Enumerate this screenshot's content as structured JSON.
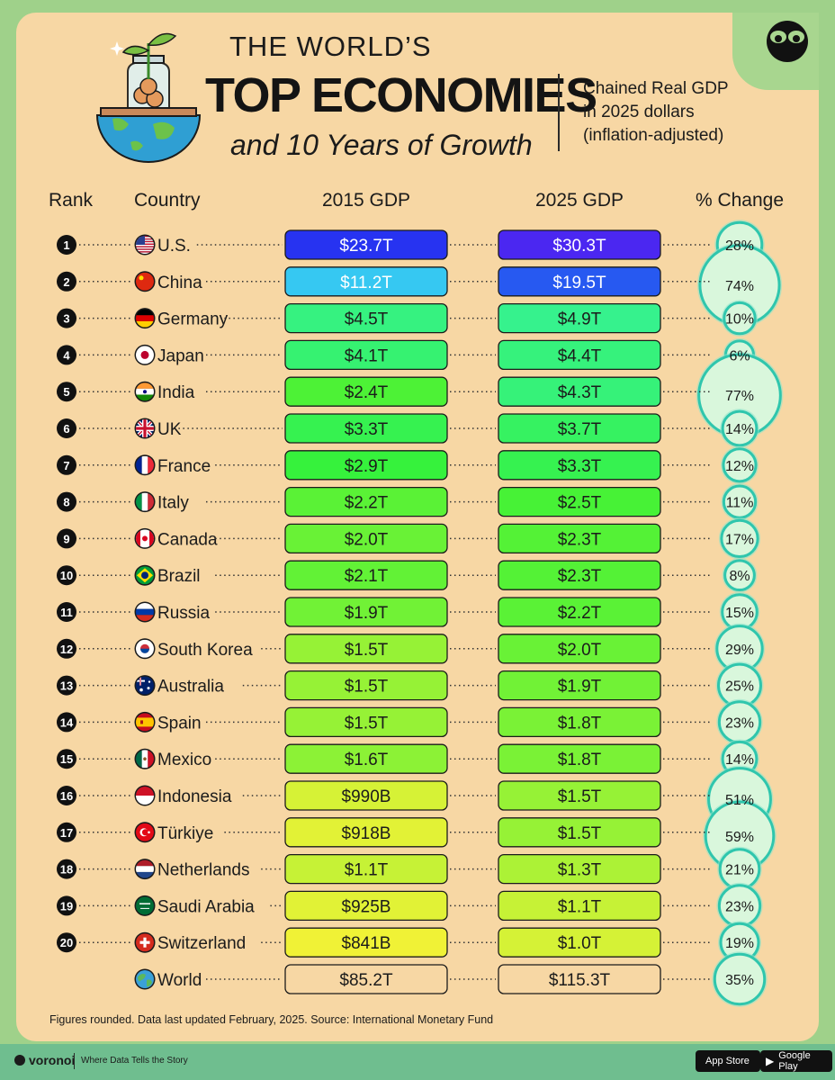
{
  "title": {
    "line1": "THE WORLD’S",
    "line2": "TOP ECONOMIES",
    "line3": "and 10 Years of Growth"
  },
  "subtitle": "Chained Real GDP\nin 2025 dollars\n(inflation-adjusted)",
  "chart_data": {
    "type": "table",
    "title": "The World's Top Economies and 10 Years of Growth",
    "columns": [
      "Rank",
      "Country",
      "2015 GDP",
      "2025 GDP",
      "% Change"
    ],
    "rows": [
      {
        "rank": "1",
        "country": "U.S.",
        "gdp2015": "$23.7T",
        "gdp2025": "$30.3T",
        "change": "28%",
        "v2015": 23.7,
        "v2025": 30.3,
        "pct": 28
      },
      {
        "rank": "2",
        "country": "China",
        "gdp2015": "$11.2T",
        "gdp2025": "$19.5T",
        "change": "74%",
        "v2015": 11.2,
        "v2025": 19.5,
        "pct": 74
      },
      {
        "rank": "3",
        "country": "Germany",
        "gdp2015": "$4.5T",
        "gdp2025": "$4.9T",
        "change": "10%",
        "v2015": 4.5,
        "v2025": 4.9,
        "pct": 10
      },
      {
        "rank": "4",
        "country": "Japan",
        "gdp2015": "$4.1T",
        "gdp2025": "$4.4T",
        "change": "6%",
        "v2015": 4.1,
        "v2025": 4.4,
        "pct": 6
      },
      {
        "rank": "5",
        "country": "India",
        "gdp2015": "$2.4T",
        "gdp2025": "$4.3T",
        "change": "77%",
        "v2015": 2.4,
        "v2025": 4.3,
        "pct": 77
      },
      {
        "rank": "6",
        "country": "UK",
        "gdp2015": "$3.3T",
        "gdp2025": "$3.7T",
        "change": "14%",
        "v2015": 3.3,
        "v2025": 3.7,
        "pct": 14
      },
      {
        "rank": "7",
        "country": "France",
        "gdp2015": "$2.9T",
        "gdp2025": "$3.3T",
        "change": "12%",
        "v2015": 2.9,
        "v2025": 3.3,
        "pct": 12
      },
      {
        "rank": "8",
        "country": "Italy",
        "gdp2015": "$2.2T",
        "gdp2025": "$2.5T",
        "change": "11%",
        "v2015": 2.2,
        "v2025": 2.5,
        "pct": 11
      },
      {
        "rank": "9",
        "country": "Canada",
        "gdp2015": "$2.0T",
        "gdp2025": "$2.3T",
        "change": "17%",
        "v2015": 2.0,
        "v2025": 2.3,
        "pct": 17
      },
      {
        "rank": "10",
        "country": "Brazil",
        "gdp2015": "$2.1T",
        "gdp2025": "$2.3T",
        "change": "8%",
        "v2015": 2.1,
        "v2025": 2.3,
        "pct": 8
      },
      {
        "rank": "11",
        "country": "Russia",
        "gdp2015": "$1.9T",
        "gdp2025": "$2.2T",
        "change": "15%",
        "v2015": 1.9,
        "v2025": 2.2,
        "pct": 15
      },
      {
        "rank": "12",
        "country": "South Korea",
        "gdp2015": "$1.5T",
        "gdp2025": "$2.0T",
        "change": "29%",
        "v2015": 1.5,
        "v2025": 2.0,
        "pct": 29
      },
      {
        "rank": "13",
        "country": "Australia",
        "gdp2015": "$1.5T",
        "gdp2025": "$1.9T",
        "change": "25%",
        "v2015": 1.5,
        "v2025": 1.9,
        "pct": 25
      },
      {
        "rank": "14",
        "country": "Spain",
        "gdp2015": "$1.5T",
        "gdp2025": "$1.8T",
        "change": "23%",
        "v2015": 1.5,
        "v2025": 1.8,
        "pct": 23
      },
      {
        "rank": "15",
        "country": "Mexico",
        "gdp2015": "$1.6T",
        "gdp2025": "$1.8T",
        "change": "14%",
        "v2015": 1.6,
        "v2025": 1.8,
        "pct": 14
      },
      {
        "rank": "16",
        "country": "Indonesia",
        "gdp2015": "$990B",
        "gdp2025": "$1.5T",
        "change": "51%",
        "v2015": 0.99,
        "v2025": 1.5,
        "pct": 51
      },
      {
        "rank": "17",
        "country": "Türkiye",
        "gdp2015": "$918B",
        "gdp2025": "$1.5T",
        "change": "59%",
        "v2015": 0.918,
        "v2025": 1.5,
        "pct": 59
      },
      {
        "rank": "18",
        "country": "Netherlands",
        "gdp2015": "$1.1T",
        "gdp2025": "$1.3T",
        "change": "21%",
        "v2015": 1.1,
        "v2025": 1.3,
        "pct": 21
      },
      {
        "rank": "19",
        "country": "Saudi Arabia",
        "gdp2015": "$925B",
        "gdp2025": "$1.1T",
        "change": "23%",
        "v2015": 0.925,
        "v2025": 1.1,
        "pct": 23
      },
      {
        "rank": "20",
        "country": "Switzerland",
        "gdp2015": "$841B",
        "gdp2025": "$1.0T",
        "change": "19%",
        "v2015": 0.841,
        "v2025": 1.0,
        "pct": 19
      },
      {
        "rank": "",
        "country": "World",
        "gdp2015": "$85.2T",
        "gdp2025": "$115.3T",
        "change": "35%",
        "v2015": 85.2,
        "v2025": 115.3,
        "pct": 35,
        "total": true
      }
    ],
    "units": "Chained real GDP, trillions of 2025 dollars"
  },
  "headers": {
    "rank": "Rank",
    "country": "Country",
    "gdp2015": "2015 GDP",
    "gdp2025": "2025 GDP",
    "change": "% Change"
  },
  "footnote": "Figures rounded. Data last updated February, 2025. Source: International Monetary Fund",
  "footer": {
    "brand": "voronoi",
    "tagline": "Where Data Tells the Story",
    "app_store": "App Store",
    "google_play": "Google Play"
  },
  "colors": {
    "background_outer": "#9fd18a",
    "card": "#f7d7a4",
    "bubble_fill": "#d6f5d8",
    "bubble_stroke": "#35cbb1"
  },
  "flags": {
    "U.S.": "us",
    "China": "cn",
    "Germany": "de",
    "Japan": "jp",
    "India": "in",
    "UK": "gb",
    "France": "fr",
    "Italy": "it",
    "Canada": "ca",
    "Brazil": "br",
    "Russia": "ru",
    "South Korea": "kr",
    "Australia": "au",
    "Spain": "es",
    "Mexico": "mx",
    "Indonesia": "id",
    "Türkiye": "tr",
    "Netherlands": "nl",
    "Saudi Arabia": "sa",
    "Switzerland": "ch",
    "World": "globe"
  }
}
